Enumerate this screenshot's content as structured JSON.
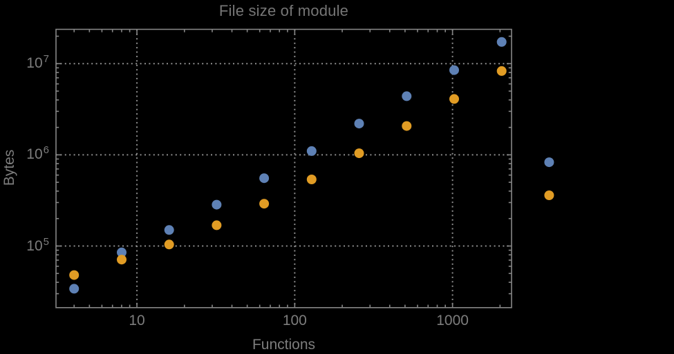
{
  "chart_data": {
    "type": "scatter",
    "title": "File size of module",
    "xlabel": "Functions",
    "ylabel": "Bytes",
    "x_scale": "log",
    "y_scale": "log",
    "xlim": [
      3.07,
      2366
    ],
    "ylim": [
      21100,
      23800000
    ],
    "grid": "dotted",
    "legend": "none",
    "x_ticks": [
      {
        "value": 10,
        "label": "10"
      },
      {
        "value": 100,
        "label": "100"
      },
      {
        "value": 1000,
        "label": "1000"
      }
    ],
    "y_ticks": [
      {
        "value": 100000,
        "base": "10",
        "exp": "5"
      },
      {
        "value": 1000000,
        "base": "10",
        "exp": "6"
      },
      {
        "value": 10000000,
        "base": "10",
        "exp": "7"
      }
    ],
    "series": [
      {
        "name": "blue",
        "color": "#5e81b5",
        "points": [
          [
            4,
            34000
          ],
          [
            8,
            85000
          ],
          [
            16,
            150000
          ],
          [
            32,
            284000
          ],
          [
            64,
            555000
          ],
          [
            128,
            1100000
          ],
          [
            256,
            2200000
          ],
          [
            512,
            4400000
          ],
          [
            1024,
            8500000
          ],
          [
            2048,
            17300000
          ],
          [
            4096,
            830000
          ]
        ]
      },
      {
        "name": "orange",
        "color": "#e19c24",
        "points": [
          [
            4,
            48000
          ],
          [
            8,
            71000
          ],
          [
            16,
            104000
          ],
          [
            32,
            169000
          ],
          [
            64,
            291000
          ],
          [
            128,
            538000
          ],
          [
            256,
            1040000
          ],
          [
            512,
            2070000
          ],
          [
            1024,
            4100000
          ],
          [
            2048,
            8300000
          ],
          [
            4096,
            360000
          ]
        ]
      }
    ]
  },
  "colors": {
    "background": "#000000",
    "text": "#7d7d7d",
    "title_text": "#767676",
    "frame": "#878787",
    "gridline": "#8f8f8f"
  }
}
